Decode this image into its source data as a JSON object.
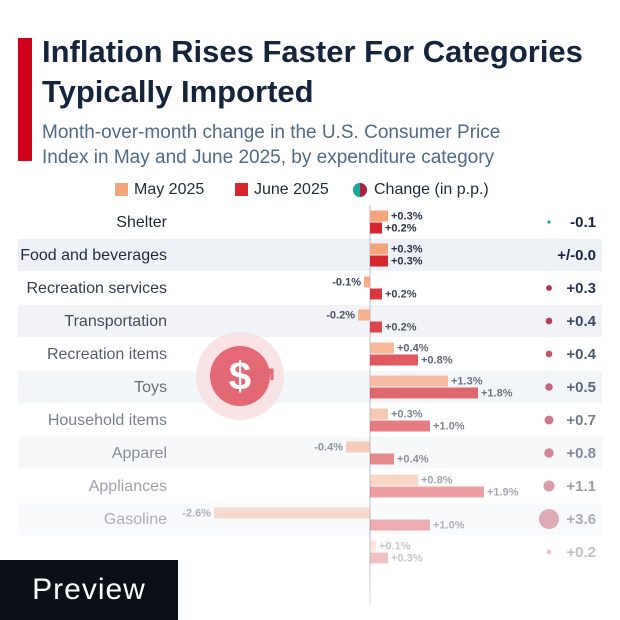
{
  "chart_data": {
    "type": "bar",
    "orientation": "horizontal",
    "title": "Inflation Rises Faster For Categories Typically Imported",
    "subtitle": "Month-over-month change in the U.S. Consumer Price Index in May and June 2025, by expenditure category",
    "categories": [
      "Shelter",
      "Food and beverages",
      "Recreation services",
      "Transportation",
      "Recreation items",
      "Toys",
      "Household items",
      "Apparel",
      "Appliances",
      "Gasoline",
      null
    ],
    "series": [
      {
        "name": "May 2025",
        "color": "#f6a47c",
        "values": [
          0.3,
          0.3,
          -0.1,
          -0.2,
          0.4,
          1.3,
          0.3,
          -0.4,
          0.8,
          -2.6,
          0.1
        ],
        "value_labels": [
          "+0.3%",
          "+0.3%",
          "-0.1%",
          "-0.2%",
          "+0.4%",
          "+1.3%",
          "+0.3%",
          "-0.4%",
          "+0.8%",
          "-2.6%",
          "+0.1%"
        ]
      },
      {
        "name": "June 2025",
        "color": "#d7262b",
        "values": [
          0.2,
          0.3,
          0.2,
          0.2,
          0.8,
          1.8,
          1.0,
          0.4,
          1.9,
          1.0,
          0.3
        ],
        "value_labels": [
          "+0.2%",
          "+0.3%",
          "+0.2%",
          "+0.2%",
          "+0.8%",
          "+1.8%",
          "+1.0%",
          "+0.4%",
          "+1.9%",
          "+1.0%",
          "+0.3%"
        ]
      }
    ],
    "change": {
      "name": "Change (in p.p.)",
      "color_negative": "#1ba89c",
      "color_positive": "#b01f3c",
      "values": [
        -0.1,
        0.0,
        0.3,
        0.4,
        0.4,
        0.5,
        0.7,
        0.8,
        1.1,
        3.6,
        0.2
      ],
      "value_labels": [
        "-0.1",
        "+/-0.0",
        "+0.3",
        "+0.4",
        "+0.4",
        "+0.5",
        "+0.7",
        "+0.8",
        "+1.1",
        "+3.6",
        "+0.2"
      ]
    }
  },
  "badge": "Preview"
}
